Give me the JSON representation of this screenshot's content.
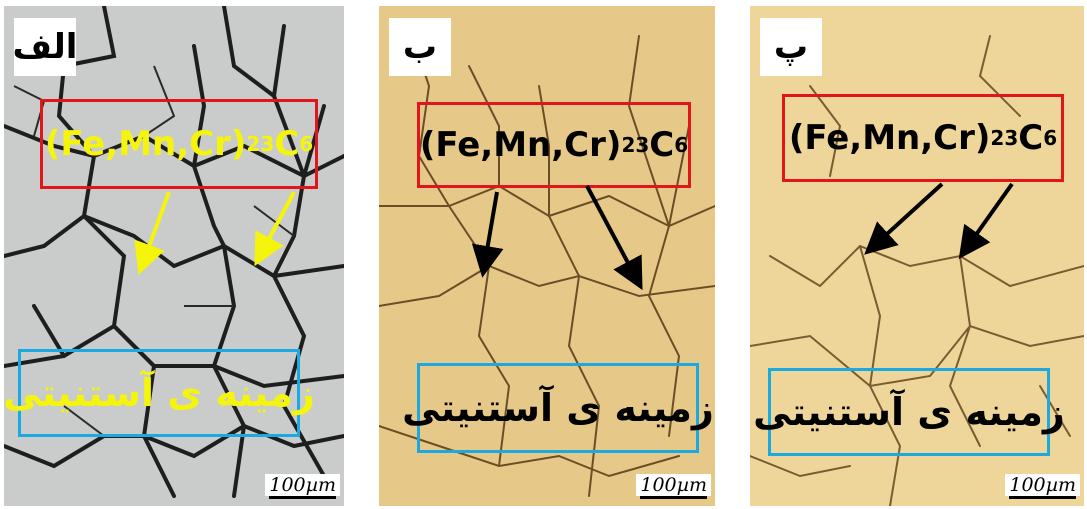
{
  "panels": [
    {
      "letter": "الف",
      "formula": {
        "main": "(Fe,Mn,Cr)",
        "sub1": "23",
        "mid": "C",
        "sub2": "6"
      },
      "matrix_label": "زمینه ی آستنیتی",
      "scale_bar": "100µm",
      "colors": {
        "background": "#c9ccca",
        "text": "#f5f50c",
        "arrow": "#f5f50c"
      }
    },
    {
      "letter": "ب",
      "formula": {
        "main": "(Fe,Mn,Cr)",
        "sub1": "23",
        "mid": "C",
        "sub2": "6"
      },
      "matrix_label": "زمینه ی آستنیتی",
      "scale_bar": "100µm",
      "colors": {
        "background": "#e6c889",
        "text": "#000000",
        "arrow": "#000000"
      }
    },
    {
      "letter": "پ",
      "formula": {
        "main": "(Fe,Mn,Cr)",
        "sub1": "23",
        "mid": "C",
        "sub2": "6"
      },
      "matrix_label": "زمینه ی آستنیتی",
      "scale_bar": "100µm",
      "colors": {
        "background": "#eed59a",
        "text": "#000000",
        "arrow": "#000000"
      }
    }
  ],
  "colors": {
    "formula_border": "#e0161c",
    "matrix_border": "#1ba9e1"
  }
}
